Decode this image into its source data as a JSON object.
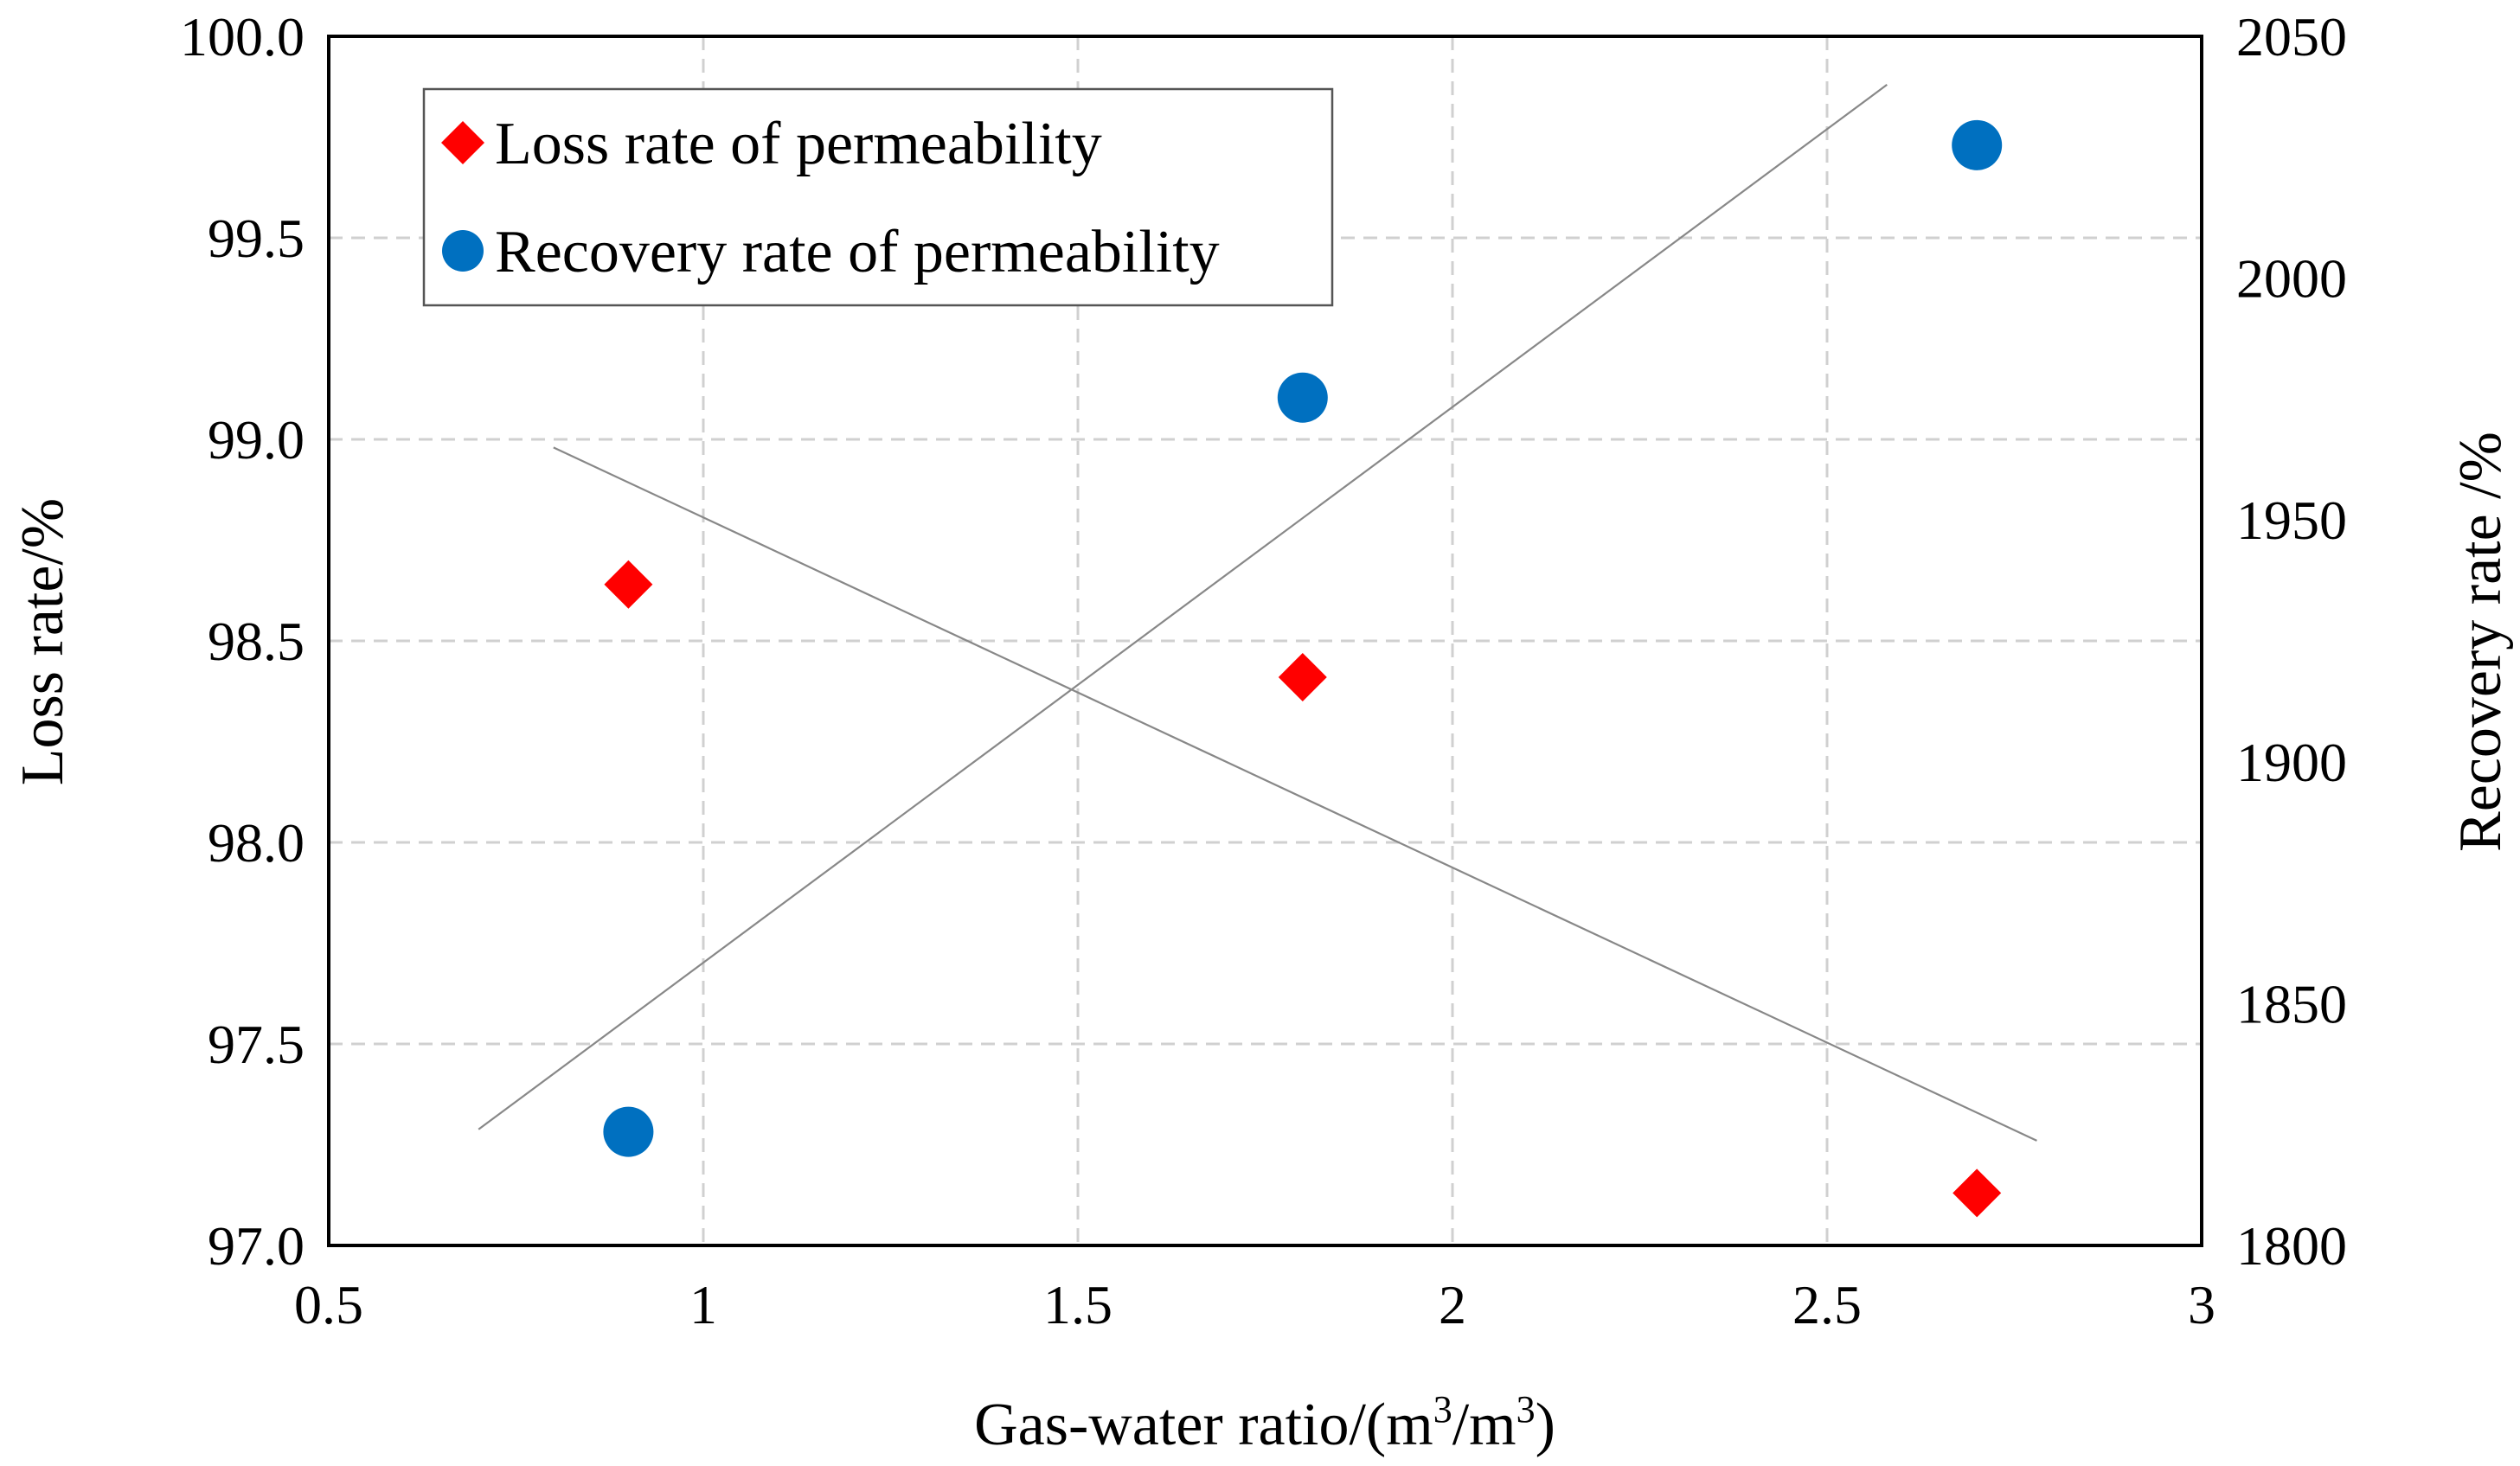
{
  "chart_data": {
    "type": "scatter",
    "xlabel": "Gas-water ratio/(m",
    "xlabel_sup1": "3",
    "xlabel_mid": "/m",
    "xlabel_sup2": "3",
    "xlabel_end": ")",
    "ylabel_left": "Loss rate/%",
    "ylabel_right": "Recovery rate /%",
    "xlim": [
      0.5,
      3
    ],
    "ylim_left": [
      97.0,
      100.0
    ],
    "ylim_right": [
      1800,
      2050
    ],
    "x_ticks": [
      "0.5",
      "1",
      "1.5",
      "2",
      "2.5",
      "3"
    ],
    "x_tick_values": [
      0.5,
      1,
      1.5,
      2,
      2.5,
      3
    ],
    "y_left_ticks": [
      "97.0",
      "97.5",
      "98.0",
      "98.5",
      "99.0",
      "99.5",
      "100.0"
    ],
    "y_left_tick_values": [
      97.0,
      97.5,
      98.0,
      98.5,
      99.0,
      99.5,
      100.0
    ],
    "y_right_ticks": [
      "1800",
      "1850",
      "1900",
      "1950",
      "2000",
      "2050"
    ],
    "y_right_tick_values": [
      1800,
      1850,
      1900,
      1950,
      2000,
      2050
    ],
    "grid": true,
    "legend_position": "top-left",
    "series": [
      {
        "name": "Loss rate of permeability",
        "axis": "left",
        "marker": "diamond",
        "color": "#ff0000",
        "x": [
          0.9,
          1.8,
          2.7
        ],
        "y": [
          98.64,
          98.41,
          97.13
        ],
        "trend": {
          "x": [
            0.8,
            2.78
          ],
          "y": [
            98.98,
            97.26
          ]
        }
      },
      {
        "name": "Recovery rate of permeability",
        "axis": "right",
        "marker": "circle",
        "color": "#0070c0",
        "x": [
          0.9,
          1.8,
          2.7
        ],
        "y": [
          1823.5,
          1975.3,
          2027.5
        ],
        "trend": {
          "x": [
            0.7,
            2.58
          ],
          "y": [
            1824,
            2040
          ]
        }
      }
    ]
  }
}
